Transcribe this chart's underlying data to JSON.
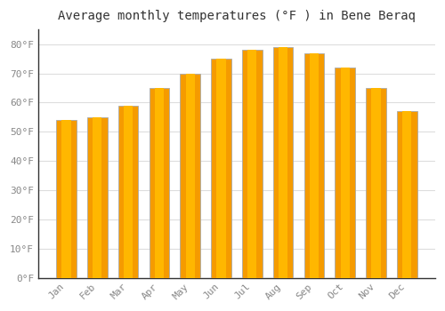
{
  "title": "Average monthly temperatures (°F ) in Bene Beraq",
  "months": [
    "Jan",
    "Feb",
    "Mar",
    "Apr",
    "May",
    "Jun",
    "Jul",
    "Aug",
    "Sep",
    "Oct",
    "Nov",
    "Dec"
  ],
  "values": [
    54,
    55,
    59,
    65,
    70,
    75,
    78,
    79,
    77,
    72,
    65,
    57
  ],
  "bar_color_light": "#FFB700",
  "bar_color_dark": "#F59B00",
  "bar_edge_color": "#AAAAAA",
  "ylim": [
    0,
    85
  ],
  "yticks": [
    0,
    10,
    20,
    30,
    40,
    50,
    60,
    70,
    80
  ],
  "ytick_labels": [
    "0°F",
    "10°F",
    "20°F",
    "30°F",
    "40°F",
    "50°F",
    "60°F",
    "70°F",
    "80°F"
  ],
  "background_color": "#FFFFFF",
  "grid_color": "#DDDDDD",
  "title_fontsize": 10,
  "tick_fontsize": 8,
  "bar_width": 0.65,
  "label_color": "#888888",
  "title_color": "#333333"
}
